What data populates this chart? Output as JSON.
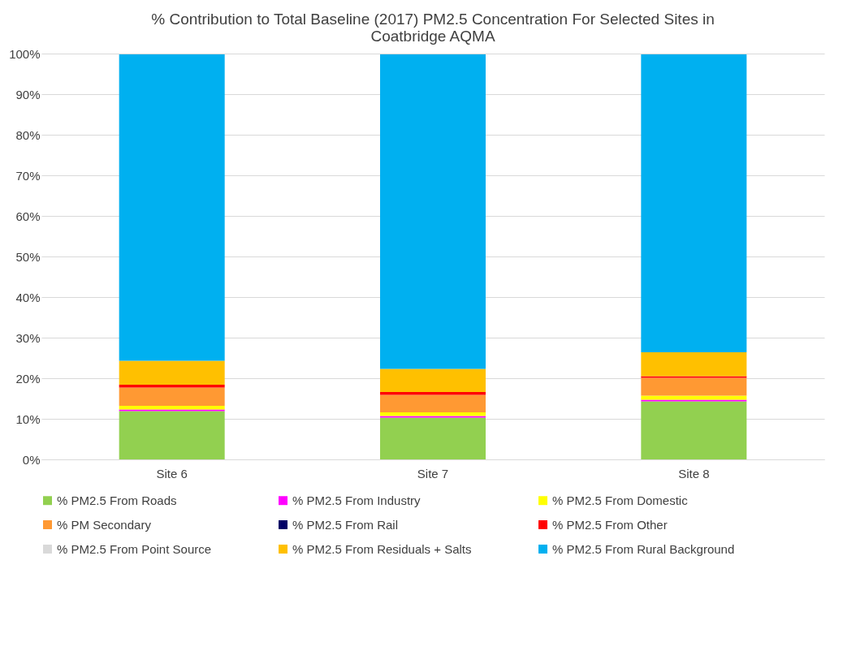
{
  "chart_data": {
    "type": "bar",
    "stacked": true,
    "title": [
      "% Contribution to Total Baseline (2017) PM2.5 Concentration For Selected Sites in",
      "Coatbridge AQMA"
    ],
    "categories": [
      "Site 6",
      "Site 7",
      "Site 8"
    ],
    "series": [
      {
        "name": "% PM2.5 From Roads",
        "color": "#92d050",
        "values": [
          11.9,
          10.3,
          14.3
        ]
      },
      {
        "name": "% PM2.5 From Industry",
        "color": "#ff00ff",
        "values": [
          0.4,
          0.4,
          0.4
        ]
      },
      {
        "name": "% PM2.5 From Domestic",
        "color": "#ffff00",
        "values": [
          0.9,
          0.9,
          1.0
        ]
      },
      {
        "name": "% PM Secondary",
        "color": "#ff9933",
        "values": [
          4.5,
          4.3,
          4.4
        ]
      },
      {
        "name": "% PM2.5 From Rail",
        "color": "#000066",
        "values": [
          0,
          0,
          0
        ]
      },
      {
        "name": "% PM2.5 From Other",
        "color": "#ff0000",
        "values": [
          0.7,
          0.7,
          0.4
        ]
      },
      {
        "name": "% PM2.5 From Point Source",
        "color": "#d9d9d9",
        "values": [
          null,
          null,
          null
        ]
      },
      {
        "name": "% PM2.5 From Residuals + Salts",
        "color": "#ffc000",
        "values": [
          5.9,
          5.7,
          5.9
        ]
      },
      {
        "name": "% PM2.5 From Rural Background",
        "color": "#00b0f0",
        "values": [
          75.5,
          77.5,
          73.4
        ]
      }
    ],
    "ylim": [
      0,
      100
    ],
    "yticks": [
      {
        "value": 0,
        "label": "0%"
      },
      {
        "value": 10,
        "label": "10%"
      },
      {
        "value": 20,
        "label": "20%"
      },
      {
        "value": 30,
        "label": "30%"
      },
      {
        "value": 40,
        "label": "40%"
      },
      {
        "value": 50,
        "label": "50%"
      },
      {
        "value": 60,
        "label": "60%"
      },
      {
        "value": 70,
        "label": "70%"
      },
      {
        "value": 80,
        "label": "80%"
      },
      {
        "value": 90,
        "label": "90%"
      },
      {
        "value": 100,
        "label": "100%"
      }
    ],
    "grid": "y",
    "legend": "bottom"
  }
}
